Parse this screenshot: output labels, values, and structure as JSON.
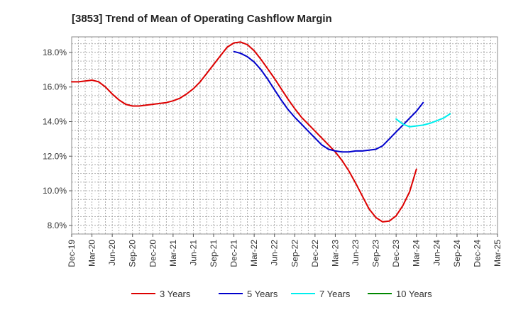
{
  "chart_data": {
    "type": "line",
    "title": "[3853]  Trend of Mean of Operating Cashflow Margin",
    "xlabel": "",
    "ylabel": "",
    "x_ticks": [
      "Dec-19",
      "Mar-20",
      "Jun-20",
      "Sep-20",
      "Dec-20",
      "Mar-21",
      "Jun-21",
      "Sep-21",
      "Dec-21",
      "Mar-22",
      "Jun-22",
      "Sep-22",
      "Dec-22",
      "Mar-23",
      "Jun-23",
      "Sep-23",
      "Dec-23",
      "Mar-24",
      "Jun-24",
      "Sep-24",
      "Dec-24",
      "Mar-25"
    ],
    "y_ticks": [
      "8.0%",
      "10.0%",
      "12.0%",
      "14.0%",
      "16.0%",
      "18.0%"
    ],
    "y_tick_values": [
      8,
      10,
      12,
      14,
      16,
      18
    ],
    "ylim": [
      7.5,
      18.9
    ],
    "grid": true,
    "legend_position": "bottom",
    "series": [
      {
        "name": "3 Years",
        "color": "#dd0000",
        "start": "Dec-19",
        "values": [
          16.3,
          16.3,
          16.35,
          16.4,
          16.3,
          16.0,
          15.6,
          15.25,
          15.0,
          14.9,
          14.9,
          14.95,
          15.0,
          15.05,
          15.1,
          15.2,
          15.35,
          15.6,
          15.9,
          16.3,
          16.8,
          17.3,
          17.8,
          18.3,
          18.55,
          18.6,
          18.45,
          18.1,
          17.6,
          17.05,
          16.5,
          15.9,
          15.3,
          14.75,
          14.25,
          13.85,
          13.45,
          13.05,
          12.65,
          12.25,
          11.75,
          11.15,
          10.45,
          9.7,
          8.95,
          8.45,
          8.2,
          8.25,
          8.55,
          9.15,
          9.95,
          11.25
        ]
      },
      {
        "name": "5 Years",
        "color": "#0000cc",
        "start": "Dec-21",
        "values": [
          18.05,
          17.95,
          17.75,
          17.45,
          17.0,
          16.45,
          15.85,
          15.25,
          14.7,
          14.25,
          13.85,
          13.45,
          13.05,
          12.65,
          12.4,
          12.3,
          12.25,
          12.25,
          12.3,
          12.3,
          12.35,
          12.4,
          12.6,
          13.0,
          13.4,
          13.8,
          14.2,
          14.6,
          15.1
        ]
      },
      {
        "name": "7 Years",
        "color": "#00eeee",
        "start": "Dec-23",
        "values": [
          14.15,
          13.85,
          13.7,
          13.75,
          13.8,
          13.9,
          14.05,
          14.2,
          14.45
        ]
      },
      {
        "name": "10 Years",
        "color": "#008800",
        "start": "Dec-23",
        "values": []
      }
    ]
  }
}
